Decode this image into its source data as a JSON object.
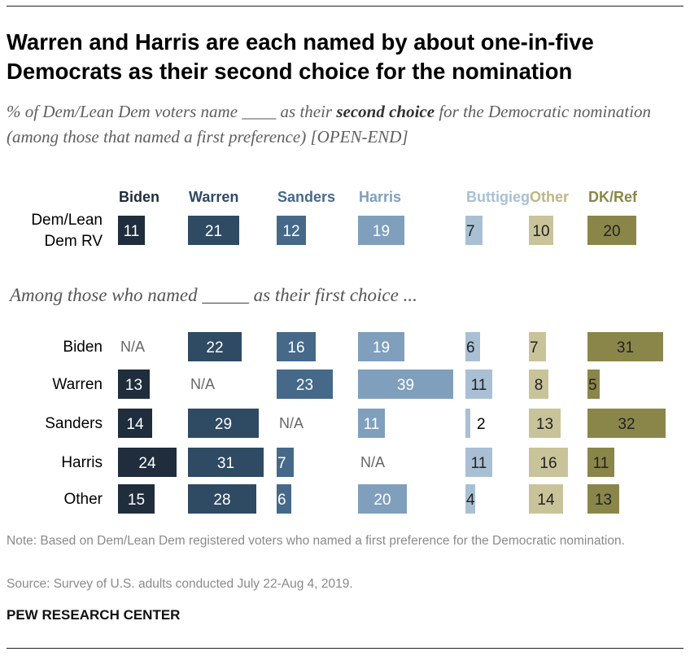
{
  "title": "Warren and Harris are each named by about one-in-five Democrats as their second choice for the nomination",
  "subtitle": {
    "before": "% of Dem/Lean Dem voters name ____ as their ",
    "emphasis": "second choice",
    "after": " for the Democratic nomination (among those that named a first preference) [OPEN-END]"
  },
  "section_label": "Among those who named _____ as their first choice ...",
  "note": "Note: Based on Dem/Lean Dem registered voters who named a first preference for the Democratic nomination.",
  "source": "Source: Survey of U.S. adults conducted July 22-Aug 4, 2019.",
  "brand": "PEW RESEARCH CENTER",
  "chart_data": {
    "type": "bar",
    "title": "Warren and Harris are each named by about one-in-five Democrats as their second choice for the nomination",
    "categories": [
      "Biden",
      "Warren",
      "Sanders",
      "Harris",
      "Buttigieg",
      "Other",
      "DK/Ref"
    ],
    "colors": [
      "#1f2d3d",
      "#2f4a63",
      "#46698a",
      "#7f9fbd",
      "#a9c0d4",
      "#c9c39a",
      "#8a864a"
    ],
    "header_colors": [
      "#1f2d3d",
      "#2f4a63",
      "#46698a",
      "#7f9fbd",
      "#a9c0d4",
      "#bdb584",
      "#8a864a"
    ],
    "na_label": "N/A",
    "rows": [
      {
        "label": [
          "Dem/Lean",
          "Dem RV"
        ],
        "values": [
          11,
          21,
          12,
          19,
          7,
          10,
          20
        ]
      },
      {
        "label": [
          "Biden"
        ],
        "values": [
          null,
          22,
          16,
          19,
          6,
          7,
          31
        ]
      },
      {
        "label": [
          "Warren"
        ],
        "values": [
          13,
          null,
          23,
          39,
          11,
          8,
          5
        ]
      },
      {
        "label": [
          "Sanders"
        ],
        "values": [
          14,
          29,
          null,
          11,
          2,
          13,
          32
        ]
      },
      {
        "label": [
          "Harris"
        ],
        "values": [
          24,
          31,
          7,
          null,
          11,
          16,
          11
        ]
      },
      {
        "label": [
          "Other"
        ],
        "values": [
          15,
          28,
          6,
          20,
          4,
          14,
          13
        ]
      }
    ]
  }
}
